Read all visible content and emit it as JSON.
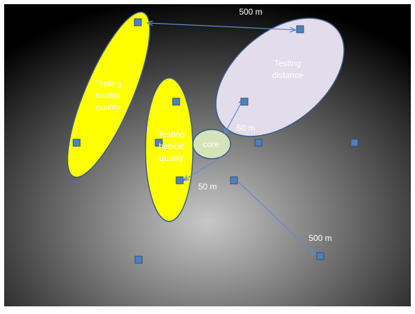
{
  "colors": {
    "background_center": "#c8c8c8",
    "background_edge": "#000000",
    "ellipse_yellow": "#ffff00",
    "ellipse_lavender": "#e3dcea",
    "core_fill": "#d5e3b8",
    "outline": "#3a5a8c",
    "square_fill": "#4f81bd",
    "square_stroke": "#2e4f7a",
    "arrow": "#5b8bd6"
  },
  "icons": {
    "sample_point": "square-marker",
    "connector": "double-arrow"
  },
  "labels": {
    "top_distance": "500 m",
    "right_near_distance": "50 m",
    "left_near_distance": "50 m",
    "bottom_distance": "500 m",
    "habitat_left": [
      "Testing",
      "habitat",
      "quality"
    ],
    "habitat_center": [
      "Testing",
      "habitat",
      "quality"
    ],
    "distance_ellipse": [
      "Testing",
      "distance"
    ],
    "core": "core"
  }
}
